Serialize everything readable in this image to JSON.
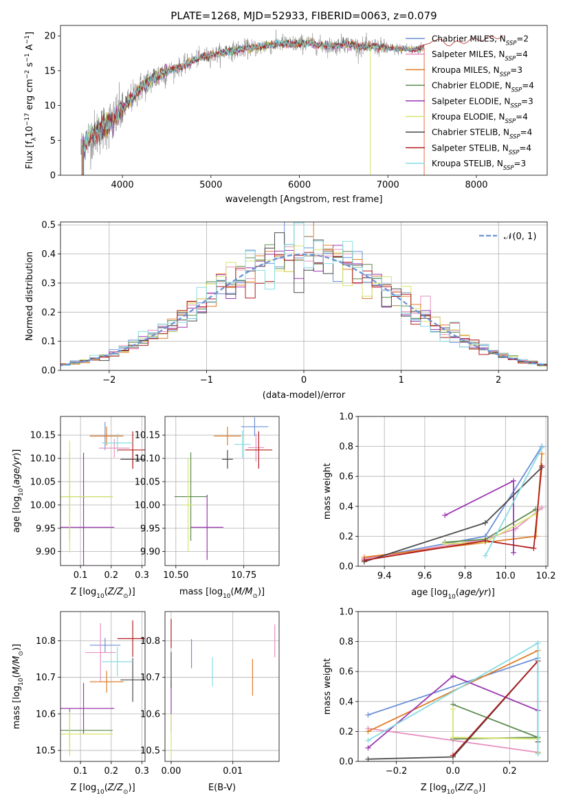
{
  "chart_data": [
    {
      "id": "spectrum",
      "type": "line",
      "title": "PLATE=1268, MJD=52933, FIBERID=0063, z=0.079",
      "xlabel": "wavelength [Angstrom, rest frame]",
      "ylabel": "Flux [fλ10⁻¹⁷ erg cm⁻² s⁻¹ A⁻¹]",
      "xlim": [
        3300,
        8800
      ],
      "ylim": [
        0,
        21.5
      ],
      "xticks": [
        4000,
        5000,
        6000,
        7000,
        8000
      ],
      "yticks": [
        0,
        5,
        10,
        15,
        20
      ],
      "grid": false,
      "legend_placement": "top-right",
      "continuum": {
        "x": [
          3530,
          3600,
          3700,
          3800,
          3900,
          4000,
          4100,
          4200,
          4300,
          4400,
          4500,
          4600,
          4700,
          4800,
          4900,
          5000,
          5100,
          5200,
          5300,
          5400,
          5500,
          5600,
          5700,
          5800,
          5900,
          6000,
          6100,
          6200,
          6300,
          6400,
          6500,
          6600,
          6700,
          6800,
          6900,
          7000,
          7100,
          7200,
          7300,
          7400,
          7500,
          7600,
          7700,
          7800,
          7900,
          8000,
          8100,
          8200,
          8300,
          8400,
          8500,
          8600,
          8700
        ],
        "y": [
          3.5,
          5,
          6,
          7,
          8,
          9.5,
          11,
          12.5,
          13.5,
          14.2,
          15,
          15.3,
          15.8,
          16.5,
          17,
          17.2,
          17.5,
          17.8,
          18,
          18.2,
          18.3,
          18.5,
          18.7,
          19,
          18.8,
          18.9,
          19,
          18.7,
          18.6,
          18.5,
          18.9,
          18.7,
          18.4,
          18.5,
          18.4,
          18.2,
          18.1,
          18.2,
          18,
          18.3,
          19.5,
          19.2,
          18.8,
          19,
          19.3,
          19.5,
          19.6,
          19.8,
          20,
          19.8,
          19.7,
          19.6,
          19.5
        ]
      },
      "series": [
        {
          "name": "Chabrier MILES, N_SSP=2",
          "color": "#6b8fd6"
        },
        {
          "name": "Salpeter MILES, N_SSP=4",
          "color": "#e68fbf"
        },
        {
          "name": "Kroupa MILES, N_SSP=3",
          "color": "#e07b25"
        },
        {
          "name": "Chabrier ELODIE, N_SSP=4",
          "color": "#5e8c4f"
        },
        {
          "name": "Salpeter ELODIE, N_SSP=3",
          "color": "#9b36b0"
        },
        {
          "name": "Kroupa ELODIE, N_SSP=4",
          "color": "#d7e36a"
        },
        {
          "name": "Chabrier STELIB, N_SSP=4",
          "color": "#4a4a4a"
        },
        {
          "name": "Salpeter STELIB, N_SSP=4",
          "color": "#b01c1c"
        },
        {
          "name": "Kroupa STELIB, N_SSP=3",
          "color": "#86dbe0"
        }
      ],
      "legend_labels": [
        {
          "base": "Chabrier MILES, N",
          "sub": "SSP",
          "tail": "=2"
        },
        {
          "base": "Salpeter MILES, N",
          "sub": "SSP",
          "tail": "=4"
        },
        {
          "base": "Kroupa MILES, N",
          "sub": "SSP",
          "tail": "=3"
        },
        {
          "base": "Chabrier ELODIE, N",
          "sub": "SSP",
          "tail": "=4"
        },
        {
          "base": "Salpeter ELODIE, N",
          "sub": "SSP",
          "tail": "=3"
        },
        {
          "base": "Kroupa ELODIE, N",
          "sub": "SSP",
          "tail": "=4"
        },
        {
          "base": "Chabrier STELIB, N",
          "sub": "SSP",
          "tail": "=4"
        },
        {
          "base": "Salpeter STELIB, N",
          "sub": "SSP",
          "tail": "=4"
        },
        {
          "base": "Kroupa STELIB, N",
          "sub": "SSP",
          "tail": "=3"
        }
      ],
      "observed_color": "#808080"
    },
    {
      "id": "residuals",
      "type": "histogram",
      "xlabel": "(data-model)/error",
      "ylabel": "Normed distribution",
      "xlim": [
        -2.5,
        2.5
      ],
      "ylim": [
        0,
        0.51
      ],
      "xticks": [
        -2,
        -1,
        0,
        1,
        2
      ],
      "yticks": [
        0.0,
        0.1,
        0.2,
        0.3,
        0.4,
        0.5
      ],
      "grid": true,
      "legend": "𝒩(0, 1)",
      "legend_placement": "top-right",
      "reference_curve": {
        "name": "𝒩(0, 1)",
        "mu": 0,
        "sigma": 1,
        "color": "#6b8fd6"
      },
      "bin_width": 0.1
    },
    {
      "id": "age_vs_Z",
      "type": "errorbar",
      "xlabel": "Z [log10(Z/Z⊙)]",
      "ylabel": "age  [log10(age/yr)]",
      "xlim": [
        0.035,
        0.31
      ],
      "ylim": [
        9.87,
        10.19
      ],
      "xticks": [
        0.1,
        0.2,
        0.3
      ],
      "yticks": [
        9.9,
        9.95,
        10.0,
        10.05,
        10.1,
        10.15
      ],
      "grid": true,
      "points": [
        {
          "x": 0.18,
          "y": 10.148,
          "xerr": 0.05,
          "yerr": 0.03,
          "color": "#6b8fd6"
        },
        {
          "x": 0.21,
          "y": 10.122,
          "xerr": 0.05,
          "yerr": 0.02,
          "color": "#e68fbf"
        },
        {
          "x": 0.185,
          "y": 10.148,
          "xerr": 0.055,
          "yerr": 0.02,
          "color": "#e07b25"
        },
        {
          "x": 0.065,
          "y": 10.018,
          "xerr": 0.14,
          "yerr": 0.095,
          "color": "#5e8c4f"
        },
        {
          "x": 0.11,
          "y": 9.952,
          "xerr": 0.1,
          "yerr": 0.16,
          "color": "#9b36b0"
        },
        {
          "x": 0.065,
          "y": 10.018,
          "xerr": 0.14,
          "yerr": 0.12,
          "color": "#d7e36a"
        },
        {
          "x": 0.27,
          "y": 10.098,
          "xerr": 0.04,
          "yerr": 0.02,
          "color": "#4a4a4a"
        },
        {
          "x": 0.27,
          "y": 10.118,
          "xerr": 0.05,
          "yerr": 0.04,
          "color": "#b01c1c"
        },
        {
          "x": 0.22,
          "y": 10.133,
          "xerr": 0.05,
          "yerr": 0.02,
          "color": "#86dbe0"
        }
      ]
    },
    {
      "id": "age_vs_mass",
      "type": "errorbar",
      "xlabel": "mass [log10(M/M⊙)]",
      "ylabel": "",
      "xlim": [
        10.46,
        10.88
      ],
      "ylim": [
        9.87,
        10.19
      ],
      "xticks": [
        10.5,
        10.75
      ],
      "yticks": [
        9.9,
        9.95,
        10.0,
        10.05,
        10.1,
        10.15
      ],
      "grid": true,
      "points": [
        {
          "x": 10.79,
          "y": 10.168,
          "xerr": 0.05,
          "yerr": 0.02,
          "color": "#6b8fd6"
        },
        {
          "x": 10.795,
          "y": 10.123,
          "xerr": 0.03,
          "yerr": 0.03,
          "color": "#e68fbf"
        },
        {
          "x": 10.69,
          "y": 10.148,
          "xerr": 0.05,
          "yerr": 0.02,
          "color": "#e07b25"
        },
        {
          "x": 10.555,
          "y": 10.018,
          "xerr": 0.06,
          "yerr": 0.095,
          "color": "#5e8c4f"
        },
        {
          "x": 10.615,
          "y": 9.952,
          "xerr": 0.06,
          "yerr": 0.07,
          "color": "#9b36b0"
        },
        {
          "x": 10.545,
          "y": 10.0,
          "xerr": 0.02,
          "yerr": 0.1,
          "color": "#d7e36a"
        },
        {
          "x": 10.69,
          "y": 10.098,
          "xerr": 0.02,
          "yerr": 0.02,
          "color": "#4a4a4a"
        },
        {
          "x": 10.805,
          "y": 10.118,
          "xerr": 0.05,
          "yerr": 0.04,
          "color": "#b01c1c"
        },
        {
          "x": 10.745,
          "y": 10.13,
          "xerr": 0.03,
          "yerr": 0.03,
          "color": "#86dbe0"
        }
      ]
    },
    {
      "id": "weight_vs_age",
      "type": "line",
      "xlabel": "age  [log10(age/yr)]",
      "ylabel": "mass weight",
      "xlim": [
        9.27,
        10.21
      ],
      "ylim": [
        0,
        1.0
      ],
      "xticks": [
        9.4,
        9.6,
        9.8,
        10.0,
        10.2
      ],
      "yticks": [
        0.0,
        0.2,
        0.4,
        0.6,
        0.8,
        1.0
      ],
      "grid": true,
      "series": [
        {
          "color": "#6b8fd6",
          "x": [
            9.3,
            9.9,
            10.18
          ],
          "y": [
            0.05,
            0.2,
            0.8
          ]
        },
        {
          "color": "#e68fbf",
          "x": [
            9.3,
            9.9,
            10.05,
            10.18
          ],
          "y": [
            0.05,
            0.18,
            0.25,
            0.39
          ]
        },
        {
          "color": "#e07b25",
          "x": [
            9.3,
            10.15,
            10.18
          ],
          "y": [
            0.06,
            0.2,
            0.75
          ]
        },
        {
          "color": "#5e8c4f",
          "x": [
            9.7,
            9.9,
            10.15
          ],
          "y": [
            0.16,
            0.18,
            0.38
          ]
        },
        {
          "color": "#9b36b0",
          "x": [
            9.7,
            10.04,
            10.04
          ],
          "y": [
            0.34,
            0.57,
            0.09
          ]
        },
        {
          "color": "#d7e36a",
          "x": [
            9.7,
            9.9,
            10.15
          ],
          "y": [
            0.15,
            0.16,
            0.35
          ]
        },
        {
          "color": "#4a4a4a",
          "x": [
            9.3,
            9.9,
            10.18
          ],
          "y": [
            0.03,
            0.29,
            0.66
          ]
        },
        {
          "color": "#b01c1c",
          "x": [
            9.3,
            9.9,
            10.14,
            10.18
          ],
          "y": [
            0.04,
            0.17,
            0.12,
            0.67
          ]
        },
        {
          "color": "#86dbe0",
          "x": [
            9.9,
            10.18
          ],
          "y": [
            0.07,
            0.79
          ]
        }
      ]
    },
    {
      "id": "mass_vs_Z",
      "type": "errorbar",
      "xlabel": "Z [log10(Z/Z⊙)]",
      "ylabel": "mass [log10(M/M⊙)]",
      "xlim": [
        0.035,
        0.31
      ],
      "ylim": [
        10.47,
        10.88
      ],
      "xticks": [
        0.1,
        0.2,
        0.3
      ],
      "yticks": [
        10.5,
        10.6,
        10.7,
        10.8
      ],
      "grid": true,
      "points": [
        {
          "x": 0.18,
          "y": 10.788,
          "xerr": 0.05,
          "yerr": 0.02,
          "color": "#6b8fd6"
        },
        {
          "x": 0.165,
          "y": 10.768,
          "xerr": 0.05,
          "yerr": 0.08,
          "color": "#e68fbf"
        },
        {
          "x": 0.185,
          "y": 10.688,
          "xerr": 0.055,
          "yerr": 0.03,
          "color": "#e07b25"
        },
        {
          "x": 0.065,
          "y": 10.555,
          "xerr": 0.14,
          "yerr": 0.06,
          "color": "#5e8c4f"
        },
        {
          "x": 0.11,
          "y": 10.615,
          "xerr": 0.1,
          "yerr": 0.07,
          "color": "#9b36b0"
        },
        {
          "x": 0.065,
          "y": 10.545,
          "xerr": 0.14,
          "yerr": 0.06,
          "color": "#d7e36a"
        },
        {
          "x": 0.27,
          "y": 10.693,
          "xerr": 0.04,
          "yerr": 0.06,
          "color": "#4a4a4a"
        },
        {
          "x": 0.27,
          "y": 10.806,
          "xerr": 0.05,
          "yerr": 0.05,
          "color": "#b01c1c"
        },
        {
          "x": 0.22,
          "y": 10.743,
          "xerr": 0.05,
          "yerr": 0.04,
          "color": "#86dbe0"
        }
      ]
    },
    {
      "id": "mass_vs_ebv",
      "type": "errorbar",
      "xlabel": "E(B-V)",
      "ylabel": "",
      "xlim": [
        -0.001,
        0.0175
      ],
      "ylim": [
        10.47,
        10.88
      ],
      "xticks": [
        0.0,
        0.01
      ],
      "yticks": [
        10.5,
        10.6,
        10.7,
        10.8
      ],
      "grid": true,
      "points": [
        {
          "x": 0.0033,
          "y": 10.765,
          "xerr": 0,
          "yerr": 0.04,
          "color": "#6b8fd6"
        },
        {
          "x": 0.0168,
          "y": 10.8,
          "xerr": 0,
          "yerr": 0.045,
          "color": "#e68fbf"
        },
        {
          "x": 0.0132,
          "y": 10.7,
          "xerr": 0,
          "yerr": 0.05,
          "color": "#e07b25"
        },
        {
          "x": 0.0,
          "y": 10.62,
          "xerr": 0,
          "yerr": 0.07,
          "color": "#9b36b0"
        },
        {
          "x": 0.0,
          "y": 10.54,
          "xerr": 0,
          "yerr": 0.06,
          "color": "#d7e36a"
        },
        {
          "x": 0.0,
          "y": 10.72,
          "xerr": 0,
          "yerr": 0.05,
          "color": "#4a4a4a"
        },
        {
          "x": 0.0,
          "y": 10.82,
          "xerr": 0,
          "yerr": 0.04,
          "color": "#b01c1c"
        },
        {
          "x": 0.0067,
          "y": 10.715,
          "xerr": 0,
          "yerr": 0.04,
          "color": "#86dbe0"
        }
      ]
    },
    {
      "id": "weight_vs_Z",
      "type": "line",
      "xlabel": "Z [log10(Z/Z⊙)]",
      "ylabel": "mass weight",
      "xlim": [
        -0.335,
        0.335
      ],
      "ylim": [
        0,
        1.0
      ],
      "xticks": [
        -0.2,
        0.0,
        0.2
      ],
      "yticks": [
        0.0,
        0.2,
        0.4,
        0.6,
        0.8,
        1.0
      ],
      "grid": true,
      "series": [
        {
          "color": "#6b8fd6",
          "x": [
            -0.3,
            0.3
          ],
          "y": [
            0.31,
            0.69
          ]
        },
        {
          "color": "#e68fbf",
          "x": [
            -0.3,
            0.3,
            0.3
          ],
          "y": [
            0.22,
            0.06,
            0.4
          ]
        },
        {
          "color": "#e07b25",
          "x": [
            -0.3,
            0.3,
            0.3
          ],
          "y": [
            0.2,
            0.74,
            0.06
          ]
        },
        {
          "color": "#5e8c4f",
          "x": [
            0.0,
            0.3,
            0.0
          ],
          "y": [
            0.38,
            0.16,
            0.15
          ]
        },
        {
          "color": "#9b36b0",
          "x": [
            -0.3,
            0.0,
            0.3
          ],
          "y": [
            0.09,
            0.57,
            0.34
          ]
        },
        {
          "color": "#d7e36a",
          "x": [
            0.0,
            0.0,
            0.3
          ],
          "y": [
            0.35,
            0.16,
            0.15
          ]
        },
        {
          "color": "#4a4a4a",
          "x": [
            -0.3,
            0.0,
            0.3,
            0.3
          ],
          "y": [
            0.015,
            0.03,
            0.67,
            0.13
          ]
        },
        {
          "color": "#b01c1c",
          "x": [
            0.0,
            0.3
          ],
          "y": [
            0.04,
            0.67
          ]
        },
        {
          "color": "#86dbe0",
          "x": [
            -0.3,
            0.3,
            0.3
          ],
          "y": [
            0.14,
            0.79,
            0.05
          ]
        }
      ]
    }
  ]
}
